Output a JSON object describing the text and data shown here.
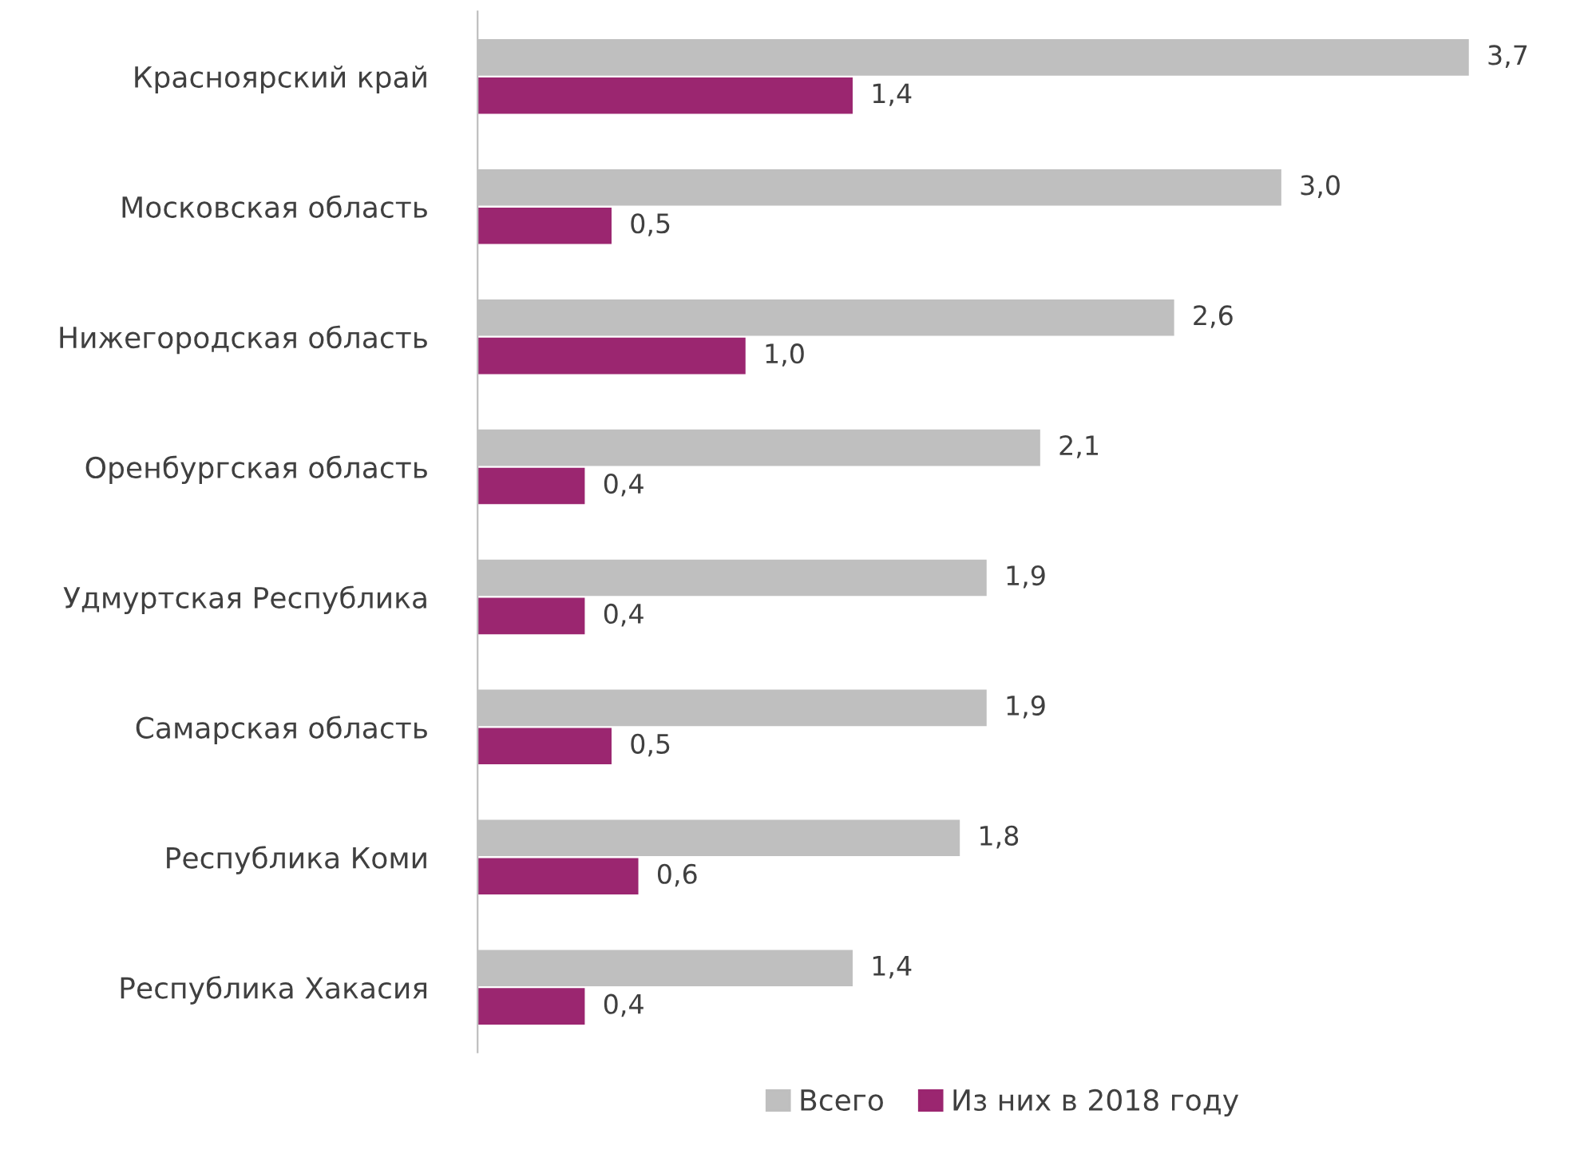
{
  "chart_data": {
    "type": "bar",
    "orientation": "horizontal",
    "categories": [
      "Красноярский край",
      "Московская область",
      "Нижегородская область",
      "Оренбургская область",
      "Удмуртская Республика",
      "Самарская область",
      "Республика Коми",
      "Республика Хакасия"
    ],
    "series": [
      {
        "name": "Всего",
        "color": "#bfbfbf",
        "values": [
          3.7,
          3.0,
          2.6,
          2.1,
          1.9,
          1.9,
          1.8,
          1.4
        ],
        "value_labels": [
          "3,7",
          "3,0",
          "2,6",
          "2,1",
          "1,9",
          "1,9",
          "1,8",
          "1,4"
        ]
      },
      {
        "name": "Из них в 2018 году",
        "color": "#9b2670",
        "values": [
          1.4,
          0.5,
          1.0,
          0.4,
          0.4,
          0.5,
          0.6,
          0.4
        ],
        "value_labels": [
          "1,4",
          "0,5",
          "1,0",
          "0,4",
          "0,4",
          "0,5",
          "0,6",
          "0,4"
        ]
      }
    ],
    "legend": "bottom",
    "grid": false,
    "tick_labels": "y"
  }
}
